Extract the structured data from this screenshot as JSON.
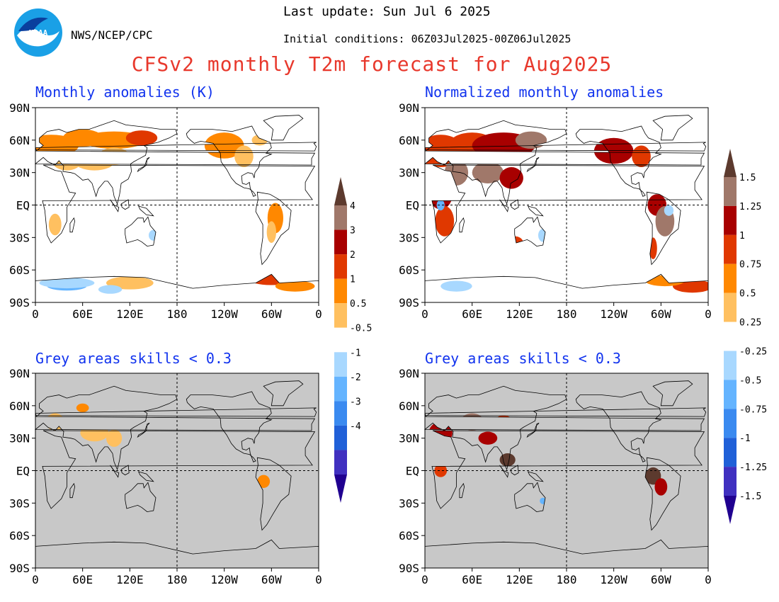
{
  "header": {
    "agency": "NWS/NCEP/CPC",
    "last_update": "Last update: Sun Jul 6 2025",
    "initial_conditions": "Initial conditions: 06Z03Jul2025-00Z06Jul2025",
    "title": "CFSv2 monthly T2m forecast for Aug2025",
    "logo_text": "NOAA"
  },
  "panels": [
    {
      "id": "anom",
      "title": "Monthly anomalies (K)",
      "background": "#ffffff"
    },
    {
      "id": "norm",
      "title": "Normalized monthly anomalies",
      "background": "#ffffff"
    },
    {
      "id": "anom_skill",
      "title": "Grey areas skills < 0.3",
      "background": "#c8c8c8"
    },
    {
      "id": "norm_skill",
      "title": "Grey areas skills < 0.3",
      "background": "#c8c8c8"
    }
  ],
  "axes": {
    "y_labels": [
      "90N",
      "60N",
      "30N",
      "EQ",
      "30S",
      "60S",
      "90S"
    ],
    "x_labels": [
      "0",
      "60E",
      "120E",
      "180",
      "120W",
      "60W",
      "0"
    ]
  },
  "colorbars": [
    {
      "id": "cb_anom",
      "labels": [
        "4",
        "3",
        "2",
        "1",
        "0.5",
        "-0.5",
        "-1",
        "-2",
        "-3",
        "-4"
      ],
      "colors": [
        "#5c3a2e",
        "#a0786a",
        "#a80000",
        "#e03800",
        "#ff8800",
        "#ffc060",
        "#ffffff",
        "#a8d8ff",
        "#64b4ff",
        "#3a8af0",
        "#2060d8",
        "#4030c0",
        "#200090"
      ]
    },
    {
      "id": "cb_norm",
      "labels": [
        "1.5",
        "1.25",
        "1",
        "0.75",
        "0.5",
        "0.25",
        "-0.25",
        "-0.5",
        "-0.75",
        "-1",
        "-1.25",
        "-1.5"
      ],
      "colors": [
        "#5c3a2e",
        "#a0786a",
        "#a80000",
        "#e03800",
        "#ff8800",
        "#ffc060",
        "#ffffff",
        "#a8d8ff",
        "#64b4ff",
        "#3a8af0",
        "#2060d8",
        "#4030c0",
        "#200090"
      ]
    }
  ]
}
